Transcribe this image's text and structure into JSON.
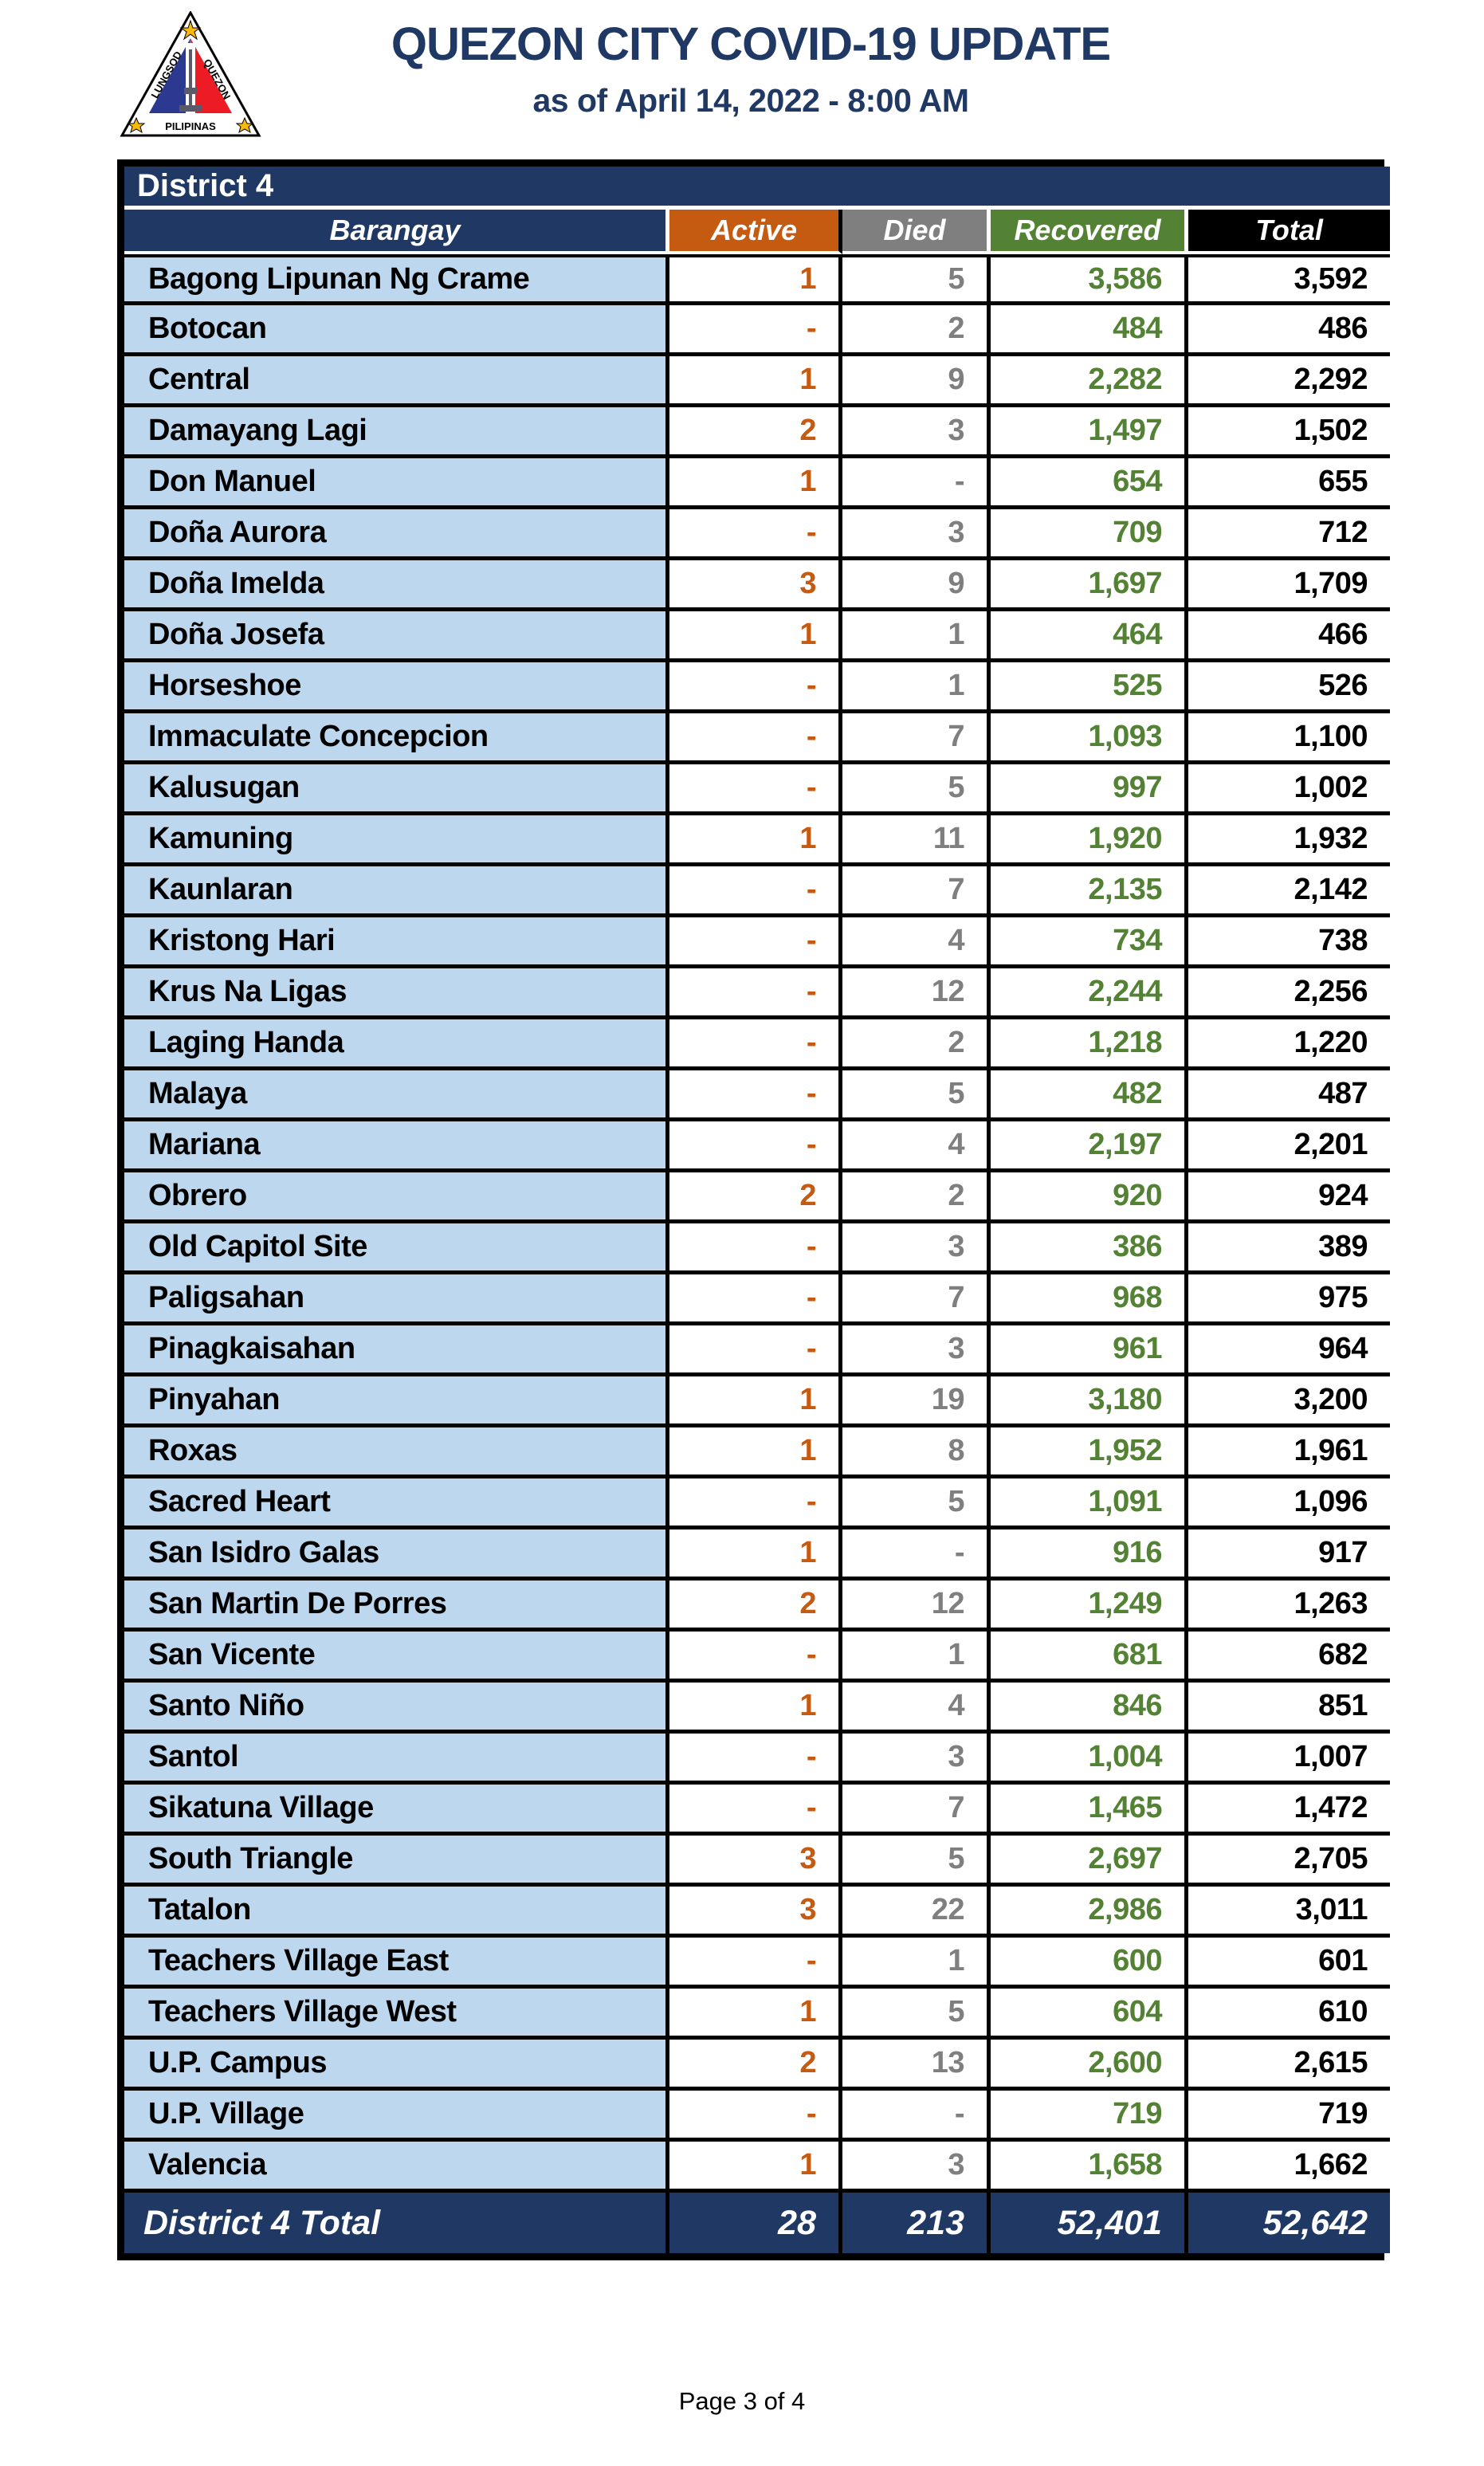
{
  "header": {
    "title": "QUEZON CITY COVID-19 UPDATE",
    "subtitle": "as of April 14, 2022 - 8:00 AM",
    "logo": {
      "text_left": "LUNGSOD",
      "text_right": "QUEZON",
      "text_bottom": "PILIPINAS"
    }
  },
  "colors": {
    "navy": "#1F3864",
    "active_accent": "#C55A11",
    "died_accent": "#7F7F7F",
    "recovered_accent": "#548235",
    "total_accent": "#000000",
    "barangay_cell_bg": "#BDD7EE"
  },
  "table": {
    "district_label": "District 4",
    "columns": [
      "Barangay",
      "Active",
      "Died",
      "Recovered",
      "Total"
    ],
    "rows": [
      {
        "barangay": "Bagong Lipunan Ng Crame",
        "active": "1",
        "died": "5",
        "recovered": "3,586",
        "total": "3,592"
      },
      {
        "barangay": "Botocan",
        "active": "-",
        "died": "2",
        "recovered": "484",
        "total": "486"
      },
      {
        "barangay": "Central",
        "active": "1",
        "died": "9",
        "recovered": "2,282",
        "total": "2,292"
      },
      {
        "barangay": "Damayang Lagi",
        "active": "2",
        "died": "3",
        "recovered": "1,497",
        "total": "1,502"
      },
      {
        "barangay": "Don Manuel",
        "active": "1",
        "died": "-",
        "recovered": "654",
        "total": "655"
      },
      {
        "barangay": "Doña Aurora",
        "active": "-",
        "died": "3",
        "recovered": "709",
        "total": "712"
      },
      {
        "barangay": "Doña Imelda",
        "active": "3",
        "died": "9",
        "recovered": "1,697",
        "total": "1,709"
      },
      {
        "barangay": "Doña Josefa",
        "active": "1",
        "died": "1",
        "recovered": "464",
        "total": "466"
      },
      {
        "barangay": "Horseshoe",
        "active": "-",
        "died": "1",
        "recovered": "525",
        "total": "526"
      },
      {
        "barangay": "Immaculate Concepcion",
        "active": "-",
        "died": "7",
        "recovered": "1,093",
        "total": "1,100"
      },
      {
        "barangay": "Kalusugan",
        "active": "-",
        "died": "5",
        "recovered": "997",
        "total": "1,002"
      },
      {
        "barangay": "Kamuning",
        "active": "1",
        "died": "11",
        "recovered": "1,920",
        "total": "1,932"
      },
      {
        "barangay": "Kaunlaran",
        "active": "-",
        "died": "7",
        "recovered": "2,135",
        "total": "2,142"
      },
      {
        "barangay": "Kristong Hari",
        "active": "-",
        "died": "4",
        "recovered": "734",
        "total": "738"
      },
      {
        "barangay": "Krus Na Ligas",
        "active": "-",
        "died": "12",
        "recovered": "2,244",
        "total": "2,256"
      },
      {
        "barangay": "Laging Handa",
        "active": "-",
        "died": "2",
        "recovered": "1,218",
        "total": "1,220"
      },
      {
        "barangay": "Malaya",
        "active": "-",
        "died": "5",
        "recovered": "482",
        "total": "487"
      },
      {
        "barangay": "Mariana",
        "active": "-",
        "died": "4",
        "recovered": "2,197",
        "total": "2,201"
      },
      {
        "barangay": "Obrero",
        "active": "2",
        "died": "2",
        "recovered": "920",
        "total": "924"
      },
      {
        "barangay": "Old Capitol Site",
        "active": "-",
        "died": "3",
        "recovered": "386",
        "total": "389"
      },
      {
        "barangay": "Paligsahan",
        "active": "-",
        "died": "7",
        "recovered": "968",
        "total": "975"
      },
      {
        "barangay": "Pinagkaisahan",
        "active": "-",
        "died": "3",
        "recovered": "961",
        "total": "964"
      },
      {
        "barangay": "Pinyahan",
        "active": "1",
        "died": "19",
        "recovered": "3,180",
        "total": "3,200"
      },
      {
        "barangay": "Roxas",
        "active": "1",
        "died": "8",
        "recovered": "1,952",
        "total": "1,961"
      },
      {
        "barangay": "Sacred Heart",
        "active": "-",
        "died": "5",
        "recovered": "1,091",
        "total": "1,096"
      },
      {
        "barangay": "San Isidro Galas",
        "active": "1",
        "died": "-",
        "recovered": "916",
        "total": "917"
      },
      {
        "barangay": "San Martin De Porres",
        "active": "2",
        "died": "12",
        "recovered": "1,249",
        "total": "1,263"
      },
      {
        "barangay": "San Vicente",
        "active": "-",
        "died": "1",
        "recovered": "681",
        "total": "682"
      },
      {
        "barangay": "Santo Niño",
        "active": "1",
        "died": "4",
        "recovered": "846",
        "total": "851"
      },
      {
        "barangay": "Santol",
        "active": "-",
        "died": "3",
        "recovered": "1,004",
        "total": "1,007"
      },
      {
        "barangay": "Sikatuna Village",
        "active": "-",
        "died": "7",
        "recovered": "1,465",
        "total": "1,472"
      },
      {
        "barangay": "South Triangle",
        "active": "3",
        "died": "5",
        "recovered": "2,697",
        "total": "2,705"
      },
      {
        "barangay": "Tatalon",
        "active": "3",
        "died": "22",
        "recovered": "2,986",
        "total": "3,011"
      },
      {
        "barangay": "Teachers Village East",
        "active": "-",
        "died": "1",
        "recovered": "600",
        "total": "601"
      },
      {
        "barangay": "Teachers Village West",
        "active": "1",
        "died": "5",
        "recovered": "604",
        "total": "610"
      },
      {
        "barangay": "U.P. Campus",
        "active": "2",
        "died": "13",
        "recovered": "2,600",
        "total": "2,615"
      },
      {
        "barangay": "U.P. Village",
        "active": "-",
        "died": "-",
        "recovered": "719",
        "total": "719"
      },
      {
        "barangay": "Valencia",
        "active": "1",
        "died": "3",
        "recovered": "1,658",
        "total": "1,662"
      }
    ],
    "total_row": {
      "label": "District 4 Total",
      "active": "28",
      "died": "213",
      "recovered": "52,401",
      "total": "52,642"
    }
  },
  "footer": {
    "page_label": "Page 3 of 4"
  }
}
